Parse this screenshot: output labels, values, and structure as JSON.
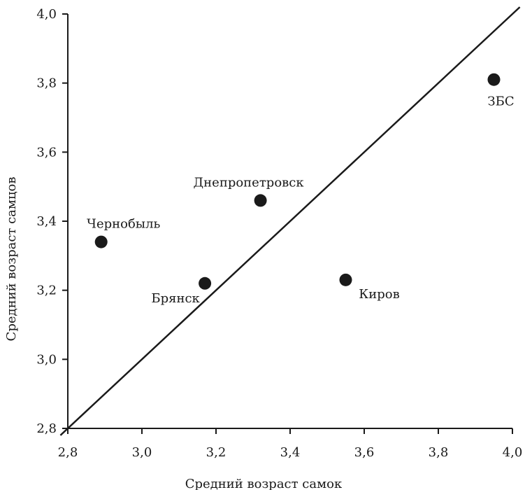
{
  "chart_data": {
    "type": "scatter",
    "title": "",
    "xlabel": "Средний возраст самок",
    "ylabel": "Средний возраст самцов",
    "xlim": [
      2.8,
      4.0
    ],
    "ylim": [
      2.8,
      4.0
    ],
    "xticks": [
      "2,8",
      "3,0",
      "3,2",
      "3,4",
      "3,6",
      "3,8",
      "4,0"
    ],
    "yticks": [
      "2,8",
      "3,0",
      "3,2",
      "3,4",
      "3,6",
      "3,8",
      "4,0"
    ],
    "grid": false,
    "reference_line": "y = x",
    "point_color": "#1a1a1a",
    "points": [
      {
        "label": "Чернобыль",
        "x": 2.89,
        "y": 3.34
      },
      {
        "label": "Брянск",
        "x": 3.17,
        "y": 3.22
      },
      {
        "label": "Днепропетровск",
        "x": 3.32,
        "y": 3.46
      },
      {
        "label": "Киров",
        "x": 3.55,
        "y": 3.23
      },
      {
        "label": "ЗБС",
        "x": 3.95,
        "y": 3.81
      }
    ]
  }
}
